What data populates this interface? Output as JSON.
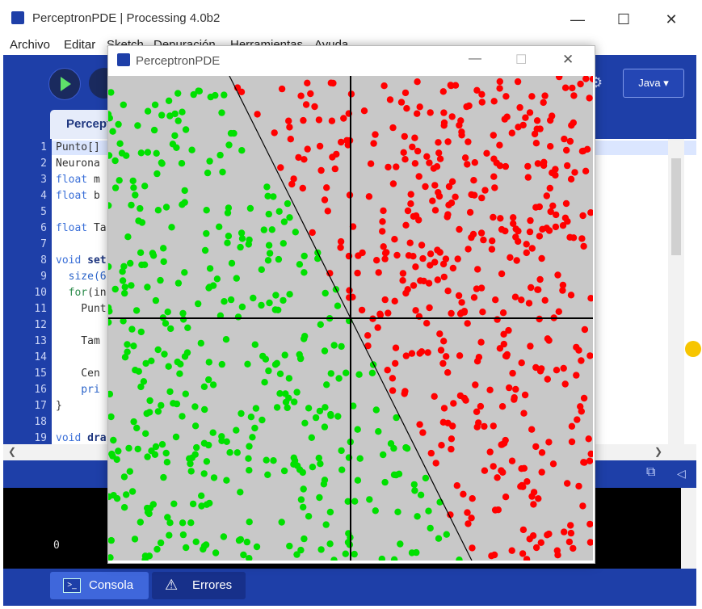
{
  "ide": {
    "title": "PerceptronPDE | Processing 4.0b2",
    "menu": [
      "Archivo",
      "Editar",
      "Sketch",
      "Depuración",
      "Herramientas",
      "Ayuda"
    ],
    "mode": "Java ▾",
    "tab": "Percept",
    "line_numbers": [
      "1",
      "2",
      "3",
      "4",
      "5",
      "6",
      "7",
      "8",
      "9",
      "10",
      "11",
      "12",
      "13",
      "14",
      "15",
      "16",
      "17",
      "18",
      "19"
    ],
    "code": {
      "l1": "Punto[]",
      "l2": "Neurona",
      "l3a": "float",
      "l3b": " m",
      "l4a": "float",
      "l4b": " b",
      "l6a": "float",
      "l6b": " Ta",
      "l8a": "void",
      "l8b": " set",
      "l9": "  size(6",
      "l10a": "  for",
      "l10b": "(in",
      "l11": "    Punt",
      "l13": "    Tam",
      "l15": "    Cen",
      "l16": "    pri",
      "l17": "}",
      "l19a": "void",
      "l19b": " dra"
    },
    "console_output": "0",
    "bottom_tabs": {
      "console": "Consola",
      "errors": "Errores"
    }
  },
  "sketch": {
    "title": "PerceptronPDE",
    "colors": {
      "background": "#c8c8c8",
      "above": "#ff0000",
      "below": "#00e000",
      "axes": "#000000"
    },
    "line": {
      "slope": -2,
      "intercept": 0
    }
  }
}
